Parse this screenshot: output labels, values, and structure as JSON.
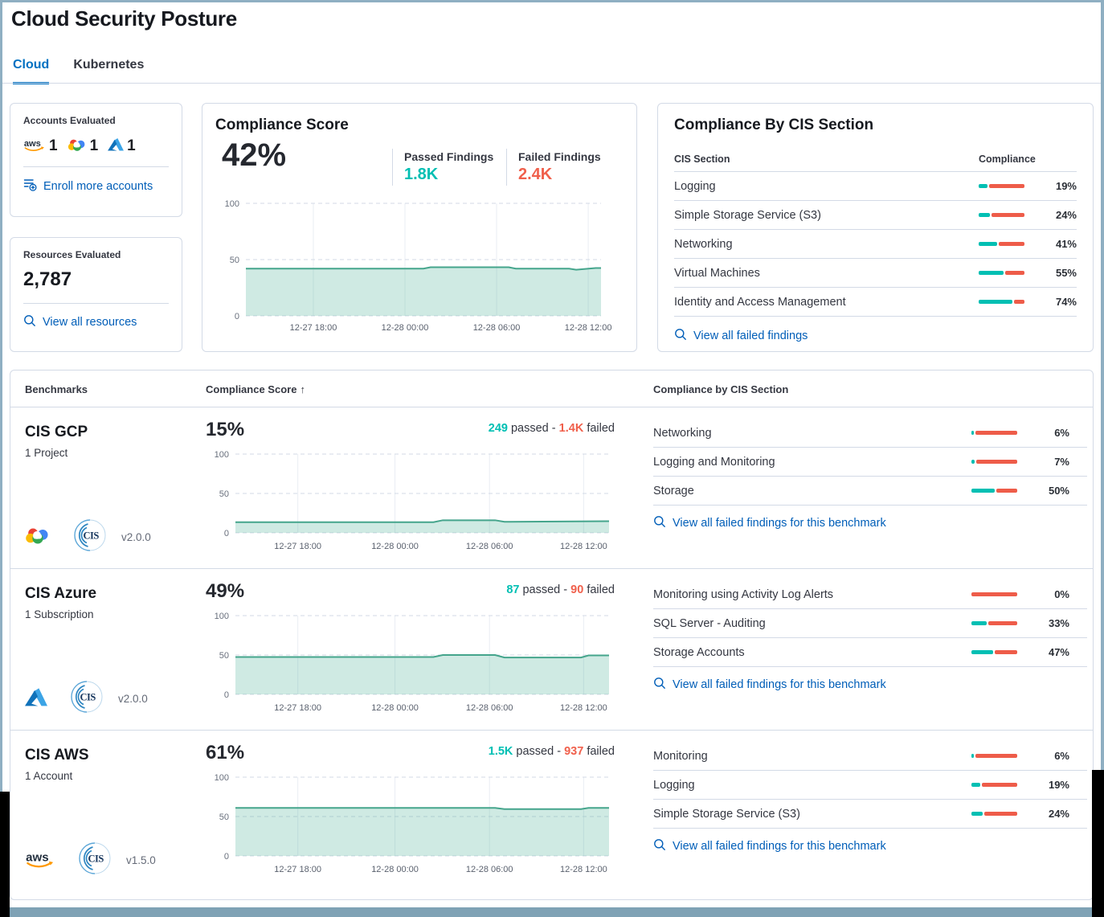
{
  "page": {
    "title": "Cloud Security Posture"
  },
  "tabs": [
    {
      "label": "Cloud"
    },
    {
      "label": "Kubernetes"
    }
  ],
  "accounts_card": {
    "title": "Accounts Evaluated",
    "providers": [
      {
        "name": "aws",
        "count": "1"
      },
      {
        "name": "gcp",
        "count": "1"
      },
      {
        "name": "azure",
        "count": "1"
      }
    ],
    "link": "Enroll more accounts"
  },
  "resources_card": {
    "title": "Resources Evaluated",
    "count": "2,787",
    "link": "View all resources"
  },
  "score_card": {
    "title": "Compliance Score",
    "score": "42%",
    "passed_label": "Passed Findings",
    "passed_value": "1.8K",
    "failed_label": "Failed Findings",
    "failed_value": "2.4K"
  },
  "cis_card": {
    "title": "Compliance By CIS Section",
    "col_section": "CIS Section",
    "col_compliance": "Compliance",
    "rows": [
      {
        "name": "Logging",
        "pct": 19,
        "pct_label": "19%"
      },
      {
        "name": "Simple Storage Service (S3)",
        "pct": 24,
        "pct_label": "24%"
      },
      {
        "name": "Networking",
        "pct": 41,
        "pct_label": "41%"
      },
      {
        "name": "Virtual Machines",
        "pct": 55,
        "pct_label": "55%"
      },
      {
        "name": "Identity and Access Management",
        "pct": 74,
        "pct_label": "74%"
      }
    ],
    "link": "View all failed findings"
  },
  "benchmarks": {
    "headers": {
      "benchmarks": "Benchmarks",
      "score": "Compliance Score",
      "sort_arrow": "↑",
      "cis": "Compliance by CIS Section"
    },
    "passed_word": "passed",
    "sep": "-",
    "failed_word": "failed",
    "rows": [
      {
        "name": "CIS GCP",
        "subtitle": "1 Project",
        "provider": "gcp",
        "version": "v2.0.0",
        "score": "15%",
        "passed": "249",
        "failed": "1.4K",
        "sections": [
          {
            "name": "Networking",
            "pct": 6,
            "pct_label": "6%"
          },
          {
            "name": "Logging and Monitoring",
            "pct": 7,
            "pct_label": "7%"
          },
          {
            "name": "Storage",
            "pct": 50,
            "pct_label": "50%"
          }
        ],
        "link": "View all failed findings for this benchmark"
      },
      {
        "name": "CIS Azure",
        "subtitle": "1 Subscription",
        "provider": "azure",
        "version": "v2.0.0",
        "score": "49%",
        "passed": "87",
        "failed": "90",
        "sections": [
          {
            "name": "Monitoring using Activity Log Alerts",
            "pct": 0,
            "pct_label": "0%"
          },
          {
            "name": "SQL Server - Auditing",
            "pct": 33,
            "pct_label": "33%"
          },
          {
            "name": "Storage Accounts",
            "pct": 47,
            "pct_label": "47%"
          }
        ],
        "link": "View all failed findings for this benchmark"
      },
      {
        "name": "CIS AWS",
        "subtitle": "1 Account",
        "provider": "aws",
        "version": "v1.5.0",
        "score": "61%",
        "passed": "1.5K",
        "failed": "937",
        "sections": [
          {
            "name": "Monitoring",
            "pct": 6,
            "pct_label": "6%"
          },
          {
            "name": "Logging",
            "pct": 19,
            "pct_label": "19%"
          },
          {
            "name": "Simple Storage Service (S3)",
            "pct": 24,
            "pct_label": "24%"
          }
        ],
        "link": "View all failed findings for this benchmark"
      }
    ]
  },
  "chart_data": [
    {
      "id": "score",
      "type": "area",
      "title": "Compliance Score trend",
      "value": 42,
      "ylim": [
        0,
        100
      ],
      "y_ticks": [
        100,
        50,
        0
      ],
      "x_ticks": [
        "12-27 18:00",
        "12-28 00:00",
        "12-28 06:00",
        "12-28 12:00"
      ],
      "grid_x": [
        0.19,
        0.448,
        0.706,
        0.964
      ],
      "points": [
        [
          0,
          42
        ],
        [
          0.5,
          42
        ],
        [
          0.52,
          43.2
        ],
        [
          0.74,
          43.2
        ],
        [
          0.76,
          42
        ],
        [
          0.91,
          42
        ],
        [
          0.93,
          41
        ],
        [
          0.985,
          42.5
        ],
        [
          1,
          42.5
        ]
      ],
      "line_color": "#45A58C",
      "fill_color": "rgba(84,179,153,0.28)"
    },
    {
      "id": "gcp",
      "type": "area",
      "title": "CIS GCP compliance trend",
      "value": 15,
      "ylim": [
        0,
        100
      ],
      "y_ticks": [
        100,
        50,
        0
      ],
      "x_ticks": [
        "12-27 18:00",
        "12-28 00:00",
        "12-28 06:00",
        "12-28 12:00"
      ],
      "grid_x": [
        0.167,
        0.427,
        0.68,
        0.932
      ],
      "points": [
        [
          0,
          13.5
        ],
        [
          0.53,
          13.5
        ],
        [
          0.555,
          16
        ],
        [
          0.695,
          16
        ],
        [
          0.72,
          14
        ],
        [
          1,
          14.8
        ]
      ],
      "line_color": "#45A58C",
      "fill_color": "rgba(84,179,153,0.28)"
    },
    {
      "id": "azure",
      "type": "area",
      "title": "CIS Azure compliance trend",
      "value": 49,
      "ylim": [
        0,
        100
      ],
      "y_ticks": [
        100,
        50,
        0
      ],
      "x_ticks": [
        "12-27 18:00",
        "12-28 00:00",
        "12-28 06:00",
        "12-28 12:00"
      ],
      "grid_x": [
        0.167,
        0.427,
        0.68,
        0.932
      ],
      "points": [
        [
          0,
          47.5
        ],
        [
          0.53,
          47.5
        ],
        [
          0.555,
          50
        ],
        [
          0.695,
          50
        ],
        [
          0.72,
          46.8
        ],
        [
          0.925,
          46.8
        ],
        [
          0.945,
          49.5
        ],
        [
          1,
          49.5
        ]
      ],
      "line_color": "#45A58C",
      "fill_color": "rgba(84,179,153,0.28)"
    },
    {
      "id": "aws",
      "type": "area",
      "title": "CIS AWS compliance trend",
      "value": 61,
      "ylim": [
        0,
        100
      ],
      "y_ticks": [
        100,
        50,
        0
      ],
      "x_ticks": [
        "12-27 18:00",
        "12-28 00:00",
        "12-28 06:00",
        "12-28 12:00"
      ],
      "grid_x": [
        0.167,
        0.427,
        0.68,
        0.932
      ],
      "points": [
        [
          0,
          61
        ],
        [
          0.695,
          61
        ],
        [
          0.72,
          59.5
        ],
        [
          0.925,
          59.5
        ],
        [
          0.945,
          61
        ],
        [
          1,
          61
        ]
      ],
      "line_color": "#45A58C",
      "fill_color": "rgba(84,179,153,0.28)"
    }
  ],
  "colors": {
    "passed": "#00BFB3",
    "failed": "#EE5C49",
    "link": "#005EB8",
    "tab_active": "#0071C2",
    "frame": "#8FAFC2",
    "bottom_bar": "#7FA2B5"
  }
}
